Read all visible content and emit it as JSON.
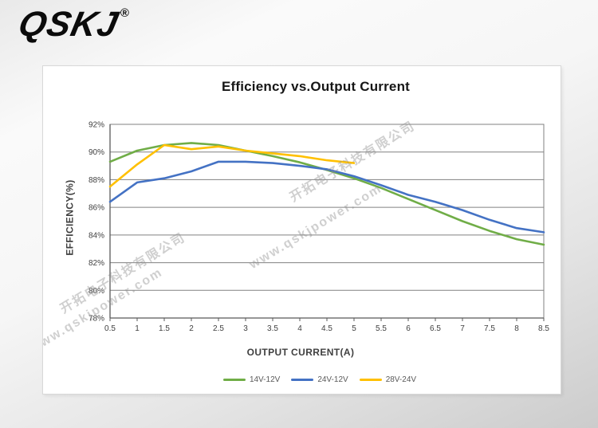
{
  "logo": {
    "text": "QSKJ",
    "registered_mark": "®"
  },
  "watermark": {
    "company_line": "开拓电子科技有限公司",
    "url_line": "www.qskjpower.com"
  },
  "chart_data": {
    "type": "line",
    "title": "Efficiency vs.Output Current",
    "xlabel": "OUTPUT CURRENT(A)",
    "ylabel": "EFFICIENCY(%)",
    "xlim": [
      0.5,
      8.5
    ],
    "ylim": [
      78,
      92
    ],
    "x_ticks": [
      0.5,
      1,
      1.5,
      2,
      2.5,
      3,
      3.5,
      4,
      4.5,
      5,
      5.5,
      6,
      6.5,
      7,
      7.5,
      8,
      8.5
    ],
    "y_ticks": [
      78,
      80,
      82,
      84,
      86,
      88,
      90,
      92
    ],
    "y_tick_suffix": "%",
    "grid": "horizontal-only",
    "legend_position": "bottom-center",
    "axis_color": "#595959",
    "grid_color": "#808080",
    "x": [
      0.5,
      1,
      1.5,
      2,
      2.5,
      3,
      3.5,
      4,
      4.5,
      5,
      5.5,
      6,
      6.5,
      7,
      7.5,
      8,
      8.5
    ],
    "series": [
      {
        "name": "14V-12V",
        "color": "#70AD47",
        "values": [
          89.3,
          90.1,
          90.5,
          90.65,
          90.5,
          90.1,
          89.7,
          89.25,
          88.7,
          88.1,
          87.4,
          86.6,
          85.8,
          85.0,
          84.3,
          83.7,
          83.3
        ]
      },
      {
        "name": "24V-12V",
        "color": "#4472C4",
        "values": [
          86.4,
          87.8,
          88.1,
          88.6,
          89.3,
          89.3,
          89.2,
          89.0,
          88.75,
          88.25,
          87.6,
          86.9,
          86.4,
          85.8,
          85.1,
          84.5,
          84.2
        ]
      },
      {
        "name": "28V-24V",
        "color": "#FFC000",
        "values": [
          87.5,
          89.1,
          90.5,
          90.2,
          90.4,
          90.1,
          89.9,
          89.7,
          89.4,
          89.2,
          null,
          null,
          null,
          null,
          null,
          null,
          null
        ]
      }
    ]
  }
}
